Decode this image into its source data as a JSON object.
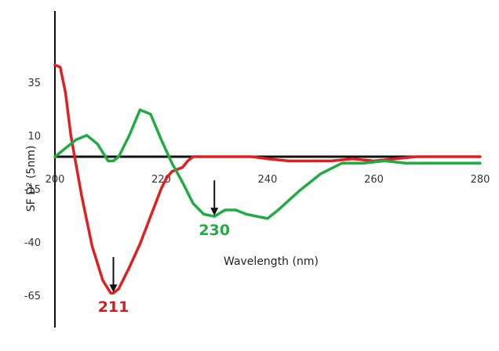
{
  "chart_data": {
    "type": "line",
    "title": "",
    "xlabel": "Wavelength (nm)",
    "ylabel": "SF D² (5nm)",
    "xlim": [
      200,
      280
    ],
    "ylim": [
      -65,
      50
    ],
    "x_ticks": [
      "200",
      "220",
      "240",
      "260",
      "280"
    ],
    "y_ticks": [
      "35",
      "10",
      "-15",
      "-40",
      "-65"
    ],
    "grid": false,
    "legend": "none",
    "series": [
      {
        "color": "#e02020",
        "x": [
          200,
          201,
          202,
          203,
          205,
          207,
          209,
          210.5,
          211,
          212,
          214,
          216,
          218,
          220,
          221,
          222,
          223,
          224,
          225,
          226,
          230,
          233,
          235,
          237,
          240,
          244,
          248,
          252,
          256,
          260,
          264,
          268,
          272,
          276,
          280
        ],
        "y": [
          43,
          42,
          30,
          10,
          -18,
          -42,
          -58,
          -64,
          -64,
          -62,
          -52,
          -41,
          -28,
          -15,
          -10,
          -7,
          -6,
          -5,
          -2,
          0,
          0,
          0,
          0,
          0,
          -1,
          -2,
          -2,
          -2,
          -1,
          -2,
          -1,
          0,
          0,
          0,
          0
        ]
      },
      {
        "color": "#22aa44",
        "x": [
          200,
          202,
          204,
          206,
          208,
          210,
          211,
          212,
          214,
          216,
          218,
          219,
          220,
          222,
          224,
          226,
          228,
          230,
          232,
          234,
          236,
          238,
          240,
          242,
          246,
          250,
          254,
          258,
          262,
          266,
          270,
          274,
          278,
          280
        ],
        "y": [
          0,
          4,
          8,
          10,
          6,
          -2,
          -2,
          0,
          10,
          22,
          20,
          14,
          8,
          -3,
          -12,
          -22,
          -27,
          -28,
          -25,
          -25,
          -27,
          -28,
          -29,
          -25,
          -16,
          -8,
          -3,
          -3,
          -2,
          -3,
          -3,
          -3,
          -3,
          -3
        ]
      }
    ],
    "annotations": [
      {
        "text": "230",
        "x": 230,
        "y": -28,
        "color": "#22aa44"
      },
      {
        "text": "211",
        "x": 211,
        "y": -64,
        "color": "#cc1f1f"
      }
    ]
  }
}
